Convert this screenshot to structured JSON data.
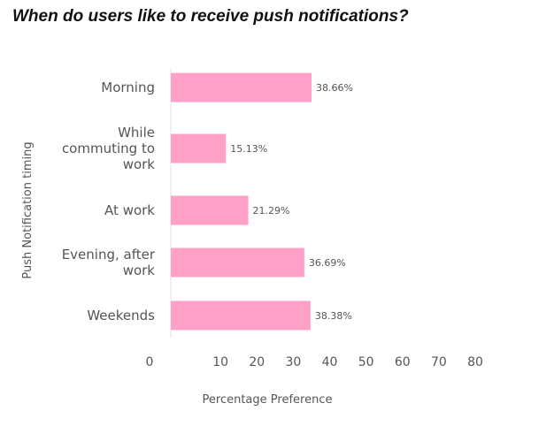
{
  "title": "When do users like to receive push notifications?",
  "chart_data": {
    "type": "bar",
    "orientation": "horizontal",
    "title": "When do users like to receive push notifications?",
    "xlabel": "Percentage Preference",
    "ylabel": "Push Notification timing",
    "xlim": [
      0,
      80
    ],
    "xticks": [
      0,
      10,
      20,
      30,
      40,
      50,
      60,
      70,
      80
    ],
    "grid": false,
    "bar_color": "#FFA1C6",
    "categories": [
      [
        "Morning"
      ],
      [
        "While",
        "commuting to",
        "work"
      ],
      [
        "At work"
      ],
      [
        "Evening, after",
        "work"
      ],
      [
        "Weekends"
      ]
    ],
    "values": [
      38.66,
      15.13,
      21.29,
      36.69,
      38.38
    ],
    "data_labels": [
      "38.66%",
      "15.13%",
      "21.29%",
      "36.69%",
      "38.38%"
    ]
  }
}
